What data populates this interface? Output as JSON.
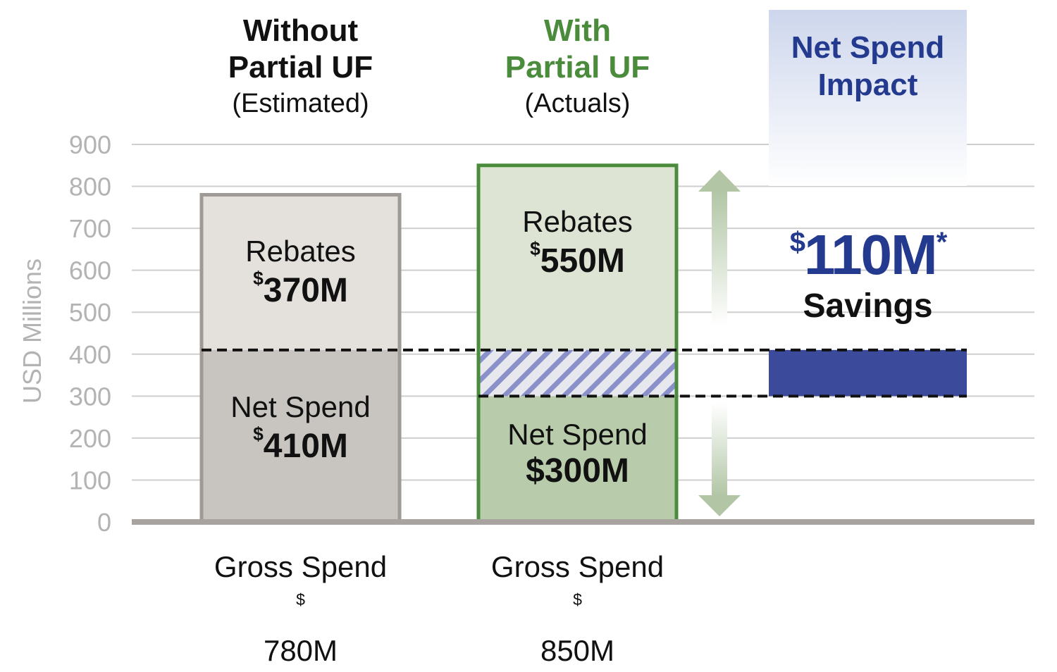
{
  "chart_data": {
    "type": "bar",
    "ylabel": "USD Millions",
    "ylim": [
      0,
      900
    ],
    "yticks": [
      0,
      100,
      200,
      300,
      400,
      500,
      600,
      700,
      800,
      900
    ],
    "grid": true,
    "categories": [
      {
        "header_line1": "Without",
        "header_line2": "Partial UF",
        "header_line3": "(Estimated)",
        "net_spend_label": "Net Spend",
        "net_spend_value": "410M",
        "net_spend": 410,
        "rebates_label": "Rebates",
        "rebates_value": "370M",
        "rebates": 370,
        "gross_label": "Gross Spend",
        "gross_value": "780M",
        "gross": 780
      },
      {
        "header_line1": "With",
        "header_line2": "Partial UF",
        "header_line3": "(Actuals)",
        "net_spend_label": "Net Spend",
        "net_spend_value": "$300M",
        "net_spend": 300,
        "rebates_label": "Rebates",
        "rebates_value": "550M",
        "rebates": 550,
        "gross_label": "Gross Spend",
        "gross_value": "850M",
        "gross": 850
      }
    ],
    "impact": {
      "title": "Net Spend Impact",
      "amount": "110M",
      "footnote_mark": "*",
      "label": "Savings",
      "from": 300,
      "to": 410
    },
    "currency_symbol": "$",
    "colors": {
      "without_rebates": "#e4e1dd",
      "without_net": "#c8c5c0",
      "without_border": "#9e9a95",
      "with_rebates": "#dde4d3",
      "with_net": "#b8ccab",
      "with_border": "#4a8b3c",
      "hatch": "#8a90c9",
      "impact": "#3b4a9a",
      "arrow": "#b2c6a6",
      "grid": "#cfcfcf",
      "axis": "#a8a39e"
    }
  }
}
